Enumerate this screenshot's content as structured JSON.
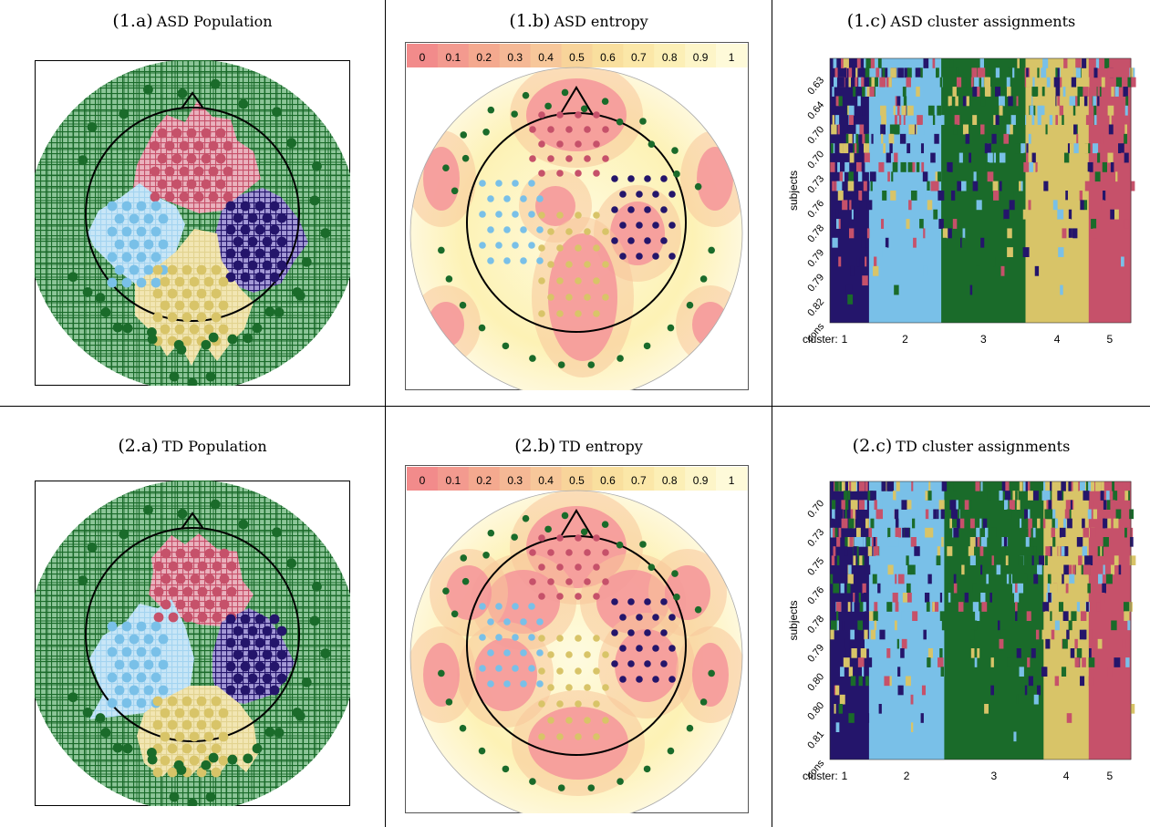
{
  "colors": {
    "c1": "#24156b",
    "c2": "#79c0e8",
    "c3": "#1a6b2a",
    "c4": "#d8c468",
    "c5": "#c6516a",
    "c1_light": "#a398d6",
    "c2_light": "#c8e6f7",
    "c3_light": "#8cc598",
    "c4_light": "#f2e6b3",
    "c5_light": "#eab1bd"
  },
  "panels": [
    {
      "id": "1a",
      "num": "(1.a)",
      "label": "ASD Population"
    },
    {
      "id": "1b",
      "num": "(1.b)",
      "label": "ASD entropy"
    },
    {
      "id": "1c",
      "num": "(1.c)",
      "label": "ASD cluster assignments"
    },
    {
      "id": "2a",
      "num": "(2.a)",
      "label": "TD Population"
    },
    {
      "id": "2b",
      "num": "(2.b)",
      "label": "TD entropy"
    },
    {
      "id": "2c",
      "num": "(2.c)",
      "label": "TD cluster assignments"
    }
  ],
  "chart_data": [
    {
      "type": "scalp-map",
      "title": "ASD Population",
      "regions": [
        "frontal",
        "left temporal",
        "right temporal",
        "parietal",
        "peripheral"
      ]
    },
    {
      "type": "heatmap",
      "title": "ASD entropy",
      "colorbar": {
        "ticks": [
          "0",
          "0.1",
          "0.2",
          "0.3",
          "0.4",
          "0.5",
          "0.6",
          "0.7",
          "0.8",
          "0.9",
          "1"
        ],
        "range": [
          0,
          1
        ]
      }
    },
    {
      "type": "heatmap",
      "title": "ASD cluster assignments",
      "ylabel": "subjects",
      "y_ticks": [
        "0.63",
        "0.64",
        "0.70",
        "0.70",
        "0.73",
        "0.76",
        "0.78",
        "0.79",
        "0.79",
        "0.82",
        "cons"
      ],
      "x_label_prefix": "cluster:",
      "clusters": [
        "1",
        "2",
        "3",
        "4",
        "5"
      ]
    },
    {
      "type": "scalp-map",
      "title": "TD Population",
      "regions": [
        "frontal",
        "left temporal",
        "right temporal",
        "parietal",
        "peripheral"
      ]
    },
    {
      "type": "heatmap",
      "title": "TD entropy",
      "colorbar": {
        "ticks": [
          "0",
          "0.1",
          "0.2",
          "0.3",
          "0.4",
          "0.5",
          "0.6",
          "0.7",
          "0.8",
          "0.9",
          "1"
        ],
        "range": [
          0,
          1
        ]
      }
    },
    {
      "type": "heatmap",
      "title": "TD cluster assignments",
      "ylabel": "subjects",
      "y_ticks": [
        "0.70",
        "0.73",
        "0.75",
        "0.76",
        "0.78",
        "0.79",
        "0.80",
        "0.80",
        "0.81",
        "cons"
      ],
      "x_label_prefix": "cluster:",
      "clusters": [
        "1",
        "2",
        "3",
        "4",
        "5"
      ]
    }
  ]
}
